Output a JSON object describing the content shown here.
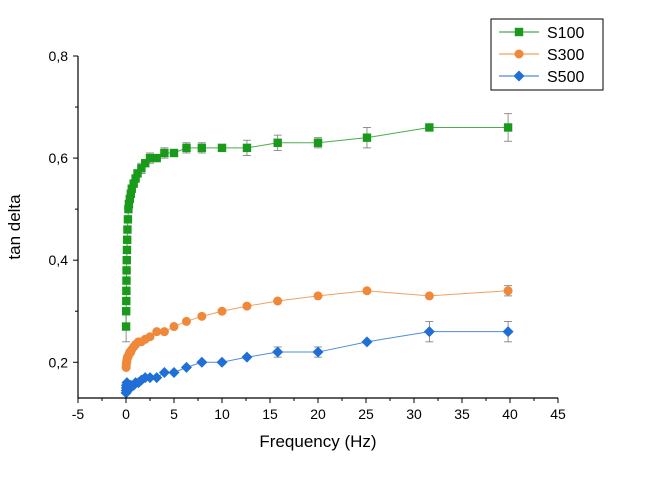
{
  "chart_data": {
    "type": "line",
    "xlabel": "Frequency (Hz)",
    "ylabel": "tan delta",
    "xlim": [
      -5,
      45
    ],
    "ylim": [
      0.13,
      0.8
    ],
    "x_ticks": [
      -5,
      0,
      5,
      10,
      15,
      20,
      25,
      30,
      35,
      40,
      45
    ],
    "x_tick_labels": [
      "-5",
      "0",
      "5",
      "10",
      "15",
      "20",
      "25",
      "30",
      "35",
      "40",
      "45"
    ],
    "y_ticks": [
      0.2,
      0.4,
      0.6,
      0.8
    ],
    "y_tick_labels": [
      "0,2",
      "0,4",
      "0,6",
      "0,8"
    ],
    "grid": false,
    "legend_position": "top-right",
    "series": [
      {
        "name": "S100",
        "color": "#1a9a1a",
        "marker": "square",
        "points": [
          [
            0.01,
            0.27,
            0.03
          ],
          [
            0.02,
            0.3,
            0
          ],
          [
            0.03,
            0.32,
            0
          ],
          [
            0.04,
            0.34,
            0
          ],
          [
            0.05,
            0.36,
            0
          ],
          [
            0.06,
            0.38,
            0
          ],
          [
            0.08,
            0.4,
            0
          ],
          [
            0.1,
            0.42,
            0
          ],
          [
            0.12,
            0.44,
            0
          ],
          [
            0.15,
            0.46,
            0
          ],
          [
            0.2,
            0.48,
            0
          ],
          [
            0.25,
            0.5,
            0
          ],
          [
            0.3,
            0.51,
            0
          ],
          [
            0.4,
            0.52,
            0
          ],
          [
            0.5,
            0.53,
            0
          ],
          [
            0.6,
            0.54,
            0
          ],
          [
            0.8,
            0.55,
            0
          ],
          [
            1.0,
            0.56,
            0
          ],
          [
            1.2,
            0.57,
            0
          ],
          [
            1.6,
            0.58,
            0.01
          ],
          [
            2.0,
            0.59,
            0
          ],
          [
            2.5,
            0.6,
            0.01
          ],
          [
            3.2,
            0.6,
            0
          ],
          [
            4.0,
            0.61,
            0.01
          ],
          [
            5.0,
            0.61,
            0
          ],
          [
            6.3,
            0.62,
            0.01
          ],
          [
            7.9,
            0.62,
            0.01
          ],
          [
            10.0,
            0.62,
            0
          ],
          [
            12.6,
            0.62,
            0.015
          ],
          [
            15.8,
            0.63,
            0.015
          ],
          [
            20.0,
            0.63,
            0.01
          ],
          [
            25.1,
            0.64,
            0.02
          ],
          [
            31.6,
            0.66,
            0
          ],
          [
            39.8,
            0.66,
            0.027
          ]
        ]
      },
      {
        "name": "S300",
        "color": "#f0883a",
        "marker": "circle",
        "points": [
          [
            0.01,
            0.19,
            0
          ],
          [
            0.02,
            0.19,
            0
          ],
          [
            0.03,
            0.195,
            0
          ],
          [
            0.05,
            0.2,
            0
          ],
          [
            0.08,
            0.2,
            0
          ],
          [
            0.1,
            0.205,
            0
          ],
          [
            0.15,
            0.21,
            0
          ],
          [
            0.2,
            0.21,
            0
          ],
          [
            0.3,
            0.215,
            0
          ],
          [
            0.4,
            0.22,
            0
          ],
          [
            0.5,
            0.22,
            0
          ],
          [
            0.6,
            0.225,
            0
          ],
          [
            0.8,
            0.23,
            0
          ],
          [
            1.0,
            0.235,
            0
          ],
          [
            1.3,
            0.24,
            0
          ],
          [
            1.6,
            0.24,
            0
          ],
          [
            2.0,
            0.245,
            0
          ],
          [
            2.5,
            0.25,
            0
          ],
          [
            3.2,
            0.26,
            0
          ],
          [
            4.0,
            0.26,
            0
          ],
          [
            5.0,
            0.27,
            0
          ],
          [
            6.3,
            0.28,
            0
          ],
          [
            7.9,
            0.29,
            0
          ],
          [
            10.0,
            0.3,
            0
          ],
          [
            12.6,
            0.31,
            0
          ],
          [
            15.8,
            0.32,
            0
          ],
          [
            20.0,
            0.33,
            0
          ],
          [
            25.1,
            0.34,
            0
          ],
          [
            31.6,
            0.33,
            0
          ],
          [
            39.8,
            0.34,
            0.01
          ]
        ]
      },
      {
        "name": "S500",
        "color": "#1f6fd6",
        "marker": "diamond",
        "points": [
          [
            0.01,
            0.14,
            0
          ],
          [
            0.02,
            0.145,
            0
          ],
          [
            0.03,
            0.15,
            0
          ],
          [
            0.05,
            0.155,
            0
          ],
          [
            0.08,
            0.15,
            0
          ],
          [
            0.1,
            0.16,
            0
          ],
          [
            0.2,
            0.145,
            0
          ],
          [
            0.3,
            0.15,
            0
          ],
          [
            0.5,
            0.155,
            0
          ],
          [
            0.8,
            0.155,
            0
          ],
          [
            1.0,
            0.16,
            0
          ],
          [
            1.3,
            0.16,
            0
          ],
          [
            1.6,
            0.165,
            0
          ],
          [
            2.0,
            0.17,
            0
          ],
          [
            2.5,
            0.17,
            0
          ],
          [
            3.2,
            0.17,
            0
          ],
          [
            4.0,
            0.18,
            0
          ],
          [
            5.0,
            0.18,
            0
          ],
          [
            6.3,
            0.19,
            0
          ],
          [
            7.9,
            0.2,
            0
          ],
          [
            10.0,
            0.2,
            0
          ],
          [
            12.6,
            0.21,
            0
          ],
          [
            15.8,
            0.22,
            0.01
          ],
          [
            20.0,
            0.22,
            0.01
          ],
          [
            25.1,
            0.24,
            0
          ],
          [
            31.6,
            0.26,
            0.02
          ],
          [
            39.8,
            0.26,
            0.02
          ]
        ]
      }
    ]
  }
}
